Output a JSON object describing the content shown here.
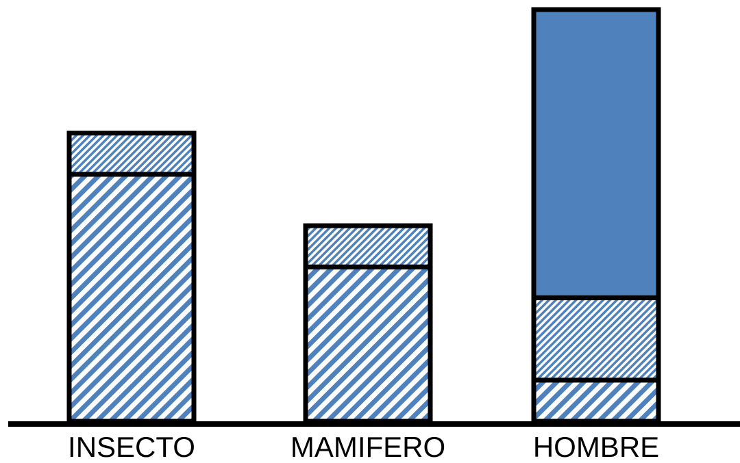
{
  "colors": {
    "accent": "#4f81bd",
    "outline": "#000000",
    "background": "#ffffff"
  },
  "chart_data": {
    "type": "bar",
    "stacked": true,
    "categories": [
      "INSECTO",
      "MAMIFERO",
      "HOMBRE"
    ],
    "series": [
      {
        "pattern": "wide-diagonal-hatch",
        "values": [
          6,
          3.75,
          1
        ]
      },
      {
        "pattern": "fine-diagonal-hatch",
        "values": [
          1,
          1,
          2
        ]
      },
      {
        "pattern": "solid",
        "values": [
          0,
          0,
          7
        ]
      }
    ],
    "ylim": [
      0,
      10
    ],
    "grid": false,
    "legend": "none"
  }
}
